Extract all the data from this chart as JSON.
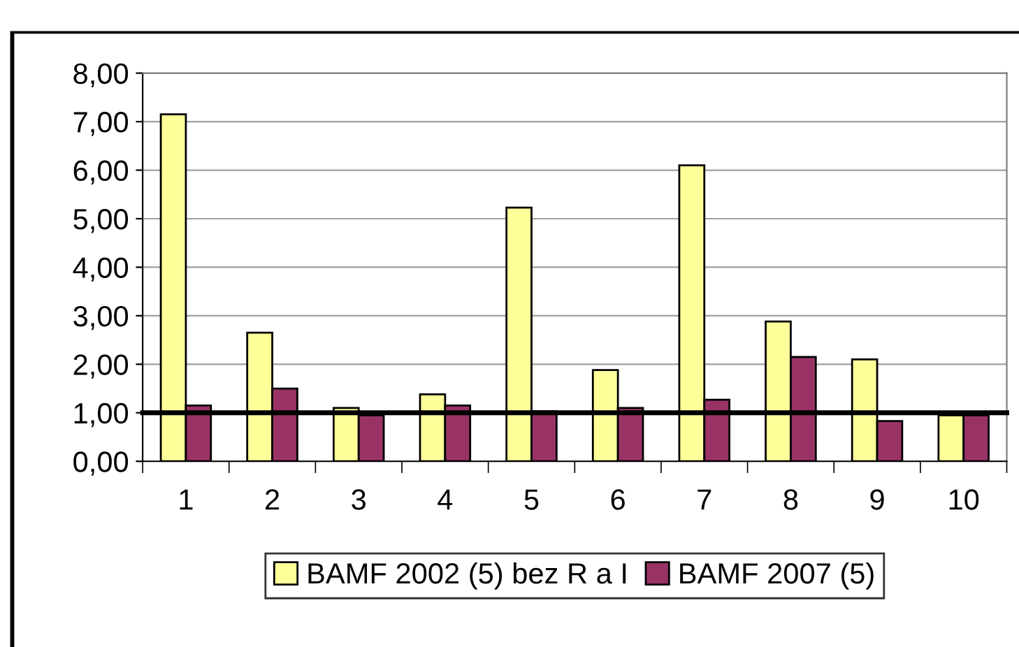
{
  "chart_data": {
    "type": "bar",
    "categories": [
      "1",
      "2",
      "3",
      "4",
      "5",
      "6",
      "7",
      "8",
      "9",
      "10"
    ],
    "series": [
      {
        "name": "BAMF 2002 (5) bez R a I",
        "color": "#ffff99",
        "values": [
          7.15,
          2.65,
          1.1,
          1.38,
          5.23,
          1.88,
          6.1,
          2.88,
          2.1,
          0.95
        ]
      },
      {
        "name": "BAMF 2007 (5)",
        "color": "#993366",
        "values": [
          1.15,
          1.5,
          0.95,
          1.15,
          1.03,
          1.1,
          1.27,
          2.15,
          0.83,
          0.95
        ]
      }
    ],
    "ylim": [
      0,
      8
    ],
    "yticks": [
      {
        "value": 0,
        "label": "0,00"
      },
      {
        "value": 1,
        "label": "1,00"
      },
      {
        "value": 2,
        "label": "2,00"
      },
      {
        "value": 3,
        "label": "3,00"
      },
      {
        "value": 4,
        "label": "4,00"
      },
      {
        "value": 5,
        "label": "5,00"
      },
      {
        "value": 6,
        "label": "6,00"
      },
      {
        "value": 7,
        "label": "7,00"
      },
      {
        "value": 8,
        "label": "8,00"
      }
    ],
    "ref_lines": [
      {
        "axis": "y",
        "value": 1,
        "color": "#000000"
      }
    ],
    "grid": "y",
    "legend": "bottom"
  }
}
